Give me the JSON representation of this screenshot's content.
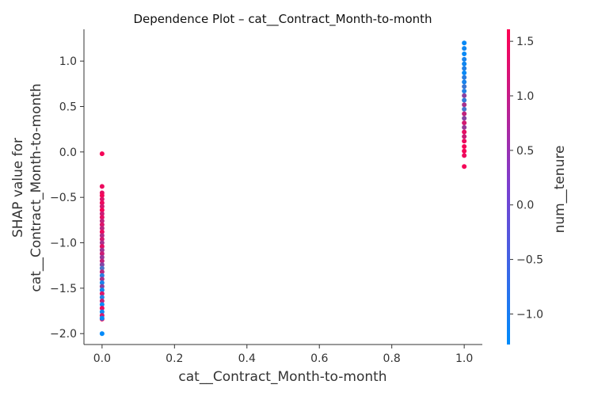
{
  "chart_data": {
    "type": "scatter",
    "title": "Dependence Plot – cat__Contract_Month-to-month",
    "xlabel": "cat__Contract_Month-to-month",
    "ylabel_lines": [
      "SHAP value for",
      "cat__Contract_Month-to-month"
    ],
    "xlim": [
      -0.05,
      1.05
    ],
    "ylim": [
      -2.12,
      1.35
    ],
    "xticks": [
      {
        "value": 0.0,
        "label": "0.0"
      },
      {
        "value": 0.2,
        "label": "0.2"
      },
      {
        "value": 0.4,
        "label": "0.4"
      },
      {
        "value": 0.6,
        "label": "0.6"
      },
      {
        "value": 0.8,
        "label": "0.8"
      },
      {
        "value": 1.0,
        "label": "1.0"
      }
    ],
    "yticks": [
      {
        "value": 1.0,
        "label": "1.0"
      },
      {
        "value": 0.5,
        "label": "0.5"
      },
      {
        "value": 0.0,
        "label": "0.0"
      },
      {
        "value": -0.5,
        "label": "−0.5"
      },
      {
        "value": -1.0,
        "label": "−1.0"
      },
      {
        "value": -1.5,
        "label": "−1.5"
      },
      {
        "value": -2.0,
        "label": "−2.0"
      }
    ],
    "colorbar": {
      "label": "num__tenure",
      "range": [
        -1.28,
        1.61
      ],
      "colors": [
        "#008bfb",
        "#ff0052"
      ],
      "ticks": [
        {
          "value": 1.5,
          "label": "1.5"
        },
        {
          "value": 1.0,
          "label": "1.0"
        },
        {
          "value": 0.5,
          "label": "0.5"
        },
        {
          "value": 0.0,
          "label": "0.0"
        },
        {
          "value": -0.5,
          "label": "−0.5"
        },
        {
          "value": -1.0,
          "label": "−1.0"
        }
      ]
    },
    "points": [
      {
        "x": 0,
        "y": -0.02,
        "c": 1.5
      },
      {
        "x": 0,
        "y": -0.38,
        "c": 1.4
      },
      {
        "x": 0,
        "y": -0.45,
        "c": 1.3
      },
      {
        "x": 0,
        "y": -0.48,
        "c": 1.5
      },
      {
        "x": 0,
        "y": -0.52,
        "c": 1.2
      },
      {
        "x": 0,
        "y": -0.56,
        "c": 1.4
      },
      {
        "x": 0,
        "y": -0.6,
        "c": 1.1
      },
      {
        "x": 0,
        "y": -0.64,
        "c": 1.5
      },
      {
        "x": 0,
        "y": -0.68,
        "c": 1.0
      },
      {
        "x": 0,
        "y": -0.72,
        "c": 1.3
      },
      {
        "x": 0,
        "y": -0.76,
        "c": 0.9
      },
      {
        "x": 0,
        "y": -0.8,
        "c": 1.2
      },
      {
        "x": 0,
        "y": -0.84,
        "c": 0.8
      },
      {
        "x": 0,
        "y": -0.88,
        "c": 1.4
      },
      {
        "x": 0,
        "y": -0.92,
        "c": 0.7
      },
      {
        "x": 0,
        "y": -0.96,
        "c": 1.1
      },
      {
        "x": 0,
        "y": -1.0,
        "c": 0.6
      },
      {
        "x": 0,
        "y": -1.04,
        "c": 1.3
      },
      {
        "x": 0,
        "y": -1.08,
        "c": 0.5
      },
      {
        "x": 0,
        "y": -1.12,
        "c": 1.0
      },
      {
        "x": 0,
        "y": -1.16,
        "c": 0.4
      },
      {
        "x": 0,
        "y": -1.2,
        "c": 0.9
      },
      {
        "x": 0,
        "y": -1.24,
        "c": 0.2
      },
      {
        "x": 0,
        "y": -1.28,
        "c": -0.4
      },
      {
        "x": 0,
        "y": -1.32,
        "c": 0.8
      },
      {
        "x": 0,
        "y": -1.36,
        "c": -0.8
      },
      {
        "x": 0,
        "y": -1.4,
        "c": 0.6
      },
      {
        "x": 0,
        "y": -1.44,
        "c": -1.0
      },
      {
        "x": 0,
        "y": -1.48,
        "c": 0.3
      },
      {
        "x": 0,
        "y": -1.52,
        "c": -1.1
      },
      {
        "x": 0,
        "y": -1.56,
        "c": 1.2
      },
      {
        "x": 0,
        "y": -1.6,
        "c": -0.9
      },
      {
        "x": 0,
        "y": -1.64,
        "c": 0.9
      },
      {
        "x": 0,
        "y": -1.68,
        "c": -1.2
      },
      {
        "x": 0,
        "y": -1.72,
        "c": 1.4
      },
      {
        "x": 0,
        "y": -1.76,
        "c": -1.1
      },
      {
        "x": 0,
        "y": -1.8,
        "c": 1.1
      },
      {
        "x": 0,
        "y": -1.84,
        "c": 1.5
      },
      {
        "x": 0,
        "y": -1.83,
        "c": -1.2
      },
      {
        "x": 0,
        "y": -2.0,
        "c": -1.25
      },
      {
        "x": 1,
        "y": 1.2,
        "c": -1.2
      },
      {
        "x": 1,
        "y": 1.14,
        "c": -1.1
      },
      {
        "x": 1,
        "y": 1.08,
        "c": -1.2
      },
      {
        "x": 1,
        "y": 1.02,
        "c": -1.0
      },
      {
        "x": 1,
        "y": 0.97,
        "c": -1.1
      },
      {
        "x": 1,
        "y": 0.92,
        "c": -0.9
      },
      {
        "x": 1,
        "y": 0.87,
        "c": -1.2
      },
      {
        "x": 1,
        "y": 0.82,
        "c": -0.8
      },
      {
        "x": 1,
        "y": 0.77,
        "c": -1.0
      },
      {
        "x": 1,
        "y": 0.72,
        "c": -0.6
      },
      {
        "x": 1,
        "y": 0.67,
        "c": -0.9
      },
      {
        "x": 1,
        "y": 0.62,
        "c": 0.3
      },
      {
        "x": 1,
        "y": 0.57,
        "c": -0.7
      },
      {
        "x": 1,
        "y": 0.52,
        "c": 0.6
      },
      {
        "x": 1,
        "y": 0.47,
        "c": -0.5
      },
      {
        "x": 1,
        "y": 0.42,
        "c": 0.9
      },
      {
        "x": 1,
        "y": 0.37,
        "c": 0.2
      },
      {
        "x": 1,
        "y": 0.32,
        "c": 1.1
      },
      {
        "x": 1,
        "y": 0.27,
        "c": 0.4
      },
      {
        "x": 1,
        "y": 0.22,
        "c": 1.3
      },
      {
        "x": 1,
        "y": 0.17,
        "c": 1.0
      },
      {
        "x": 1,
        "y": 0.12,
        "c": 1.4
      },
      {
        "x": 1,
        "y": 0.06,
        "c": 1.5
      },
      {
        "x": 1,
        "y": 0.01,
        "c": 1.5
      },
      {
        "x": 1,
        "y": -0.04,
        "c": 1.4
      },
      {
        "x": 1,
        "y": -0.16,
        "c": 1.5
      }
    ]
  }
}
